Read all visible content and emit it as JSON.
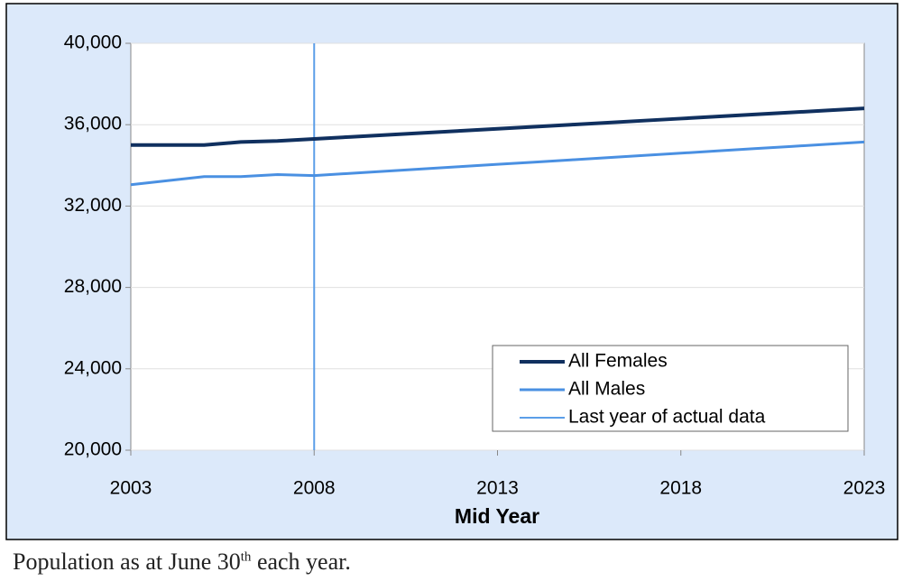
{
  "chart_data": {
    "type": "line",
    "x_label": "Mid Year",
    "x": [
      2003,
      2004,
      2005,
      2006,
      2007,
      2008,
      2009,
      2010,
      2011,
      2012,
      2013,
      2014,
      2015,
      2016,
      2017,
      2018,
      2019,
      2020,
      2021,
      2022,
      2023
    ],
    "series": [
      {
        "name": "All Females",
        "color": "#10305f",
        "values": [
          35000,
          35000,
          35000,
          35150,
          35200,
          35300,
          35400,
          35500,
          35600,
          35700,
          35800,
          35900,
          36000,
          36100,
          36200,
          36300,
          36400,
          36500,
          36600,
          36700,
          36800
        ]
      },
      {
        "name": "All Males",
        "color": "#4a90e2",
        "values": [
          33050,
          33250,
          33450,
          33450,
          33550,
          33500,
          33610,
          33720,
          33830,
          33940,
          34050,
          34160,
          34270,
          34380,
          34490,
          34600,
          34710,
          34820,
          34930,
          35040,
          35150
        ]
      }
    ],
    "marker_line": {
      "name": "Last year of actual data",
      "x": 2008,
      "color": "#5b9ee8"
    },
    "xlim": [
      2003,
      2023
    ],
    "xticks": [
      2003,
      2008,
      2013,
      2018,
      2023
    ],
    "ylim": [
      20000,
      40000
    ],
    "yticks": [
      {
        "value": 20000,
        "label": "20,000"
      },
      {
        "value": 24000,
        "label": "24,000"
      },
      {
        "value": 28000,
        "label": "28,000"
      },
      {
        "value": 32000,
        "label": "32,000"
      },
      {
        "value": 36000,
        "label": "36,000"
      },
      {
        "value": 40000,
        "label": "40,000"
      }
    ],
    "grid": true,
    "legend": "lower-right"
  },
  "caption": {
    "before": "Population as at June 30",
    "superscript": "th",
    "after": " each year."
  }
}
